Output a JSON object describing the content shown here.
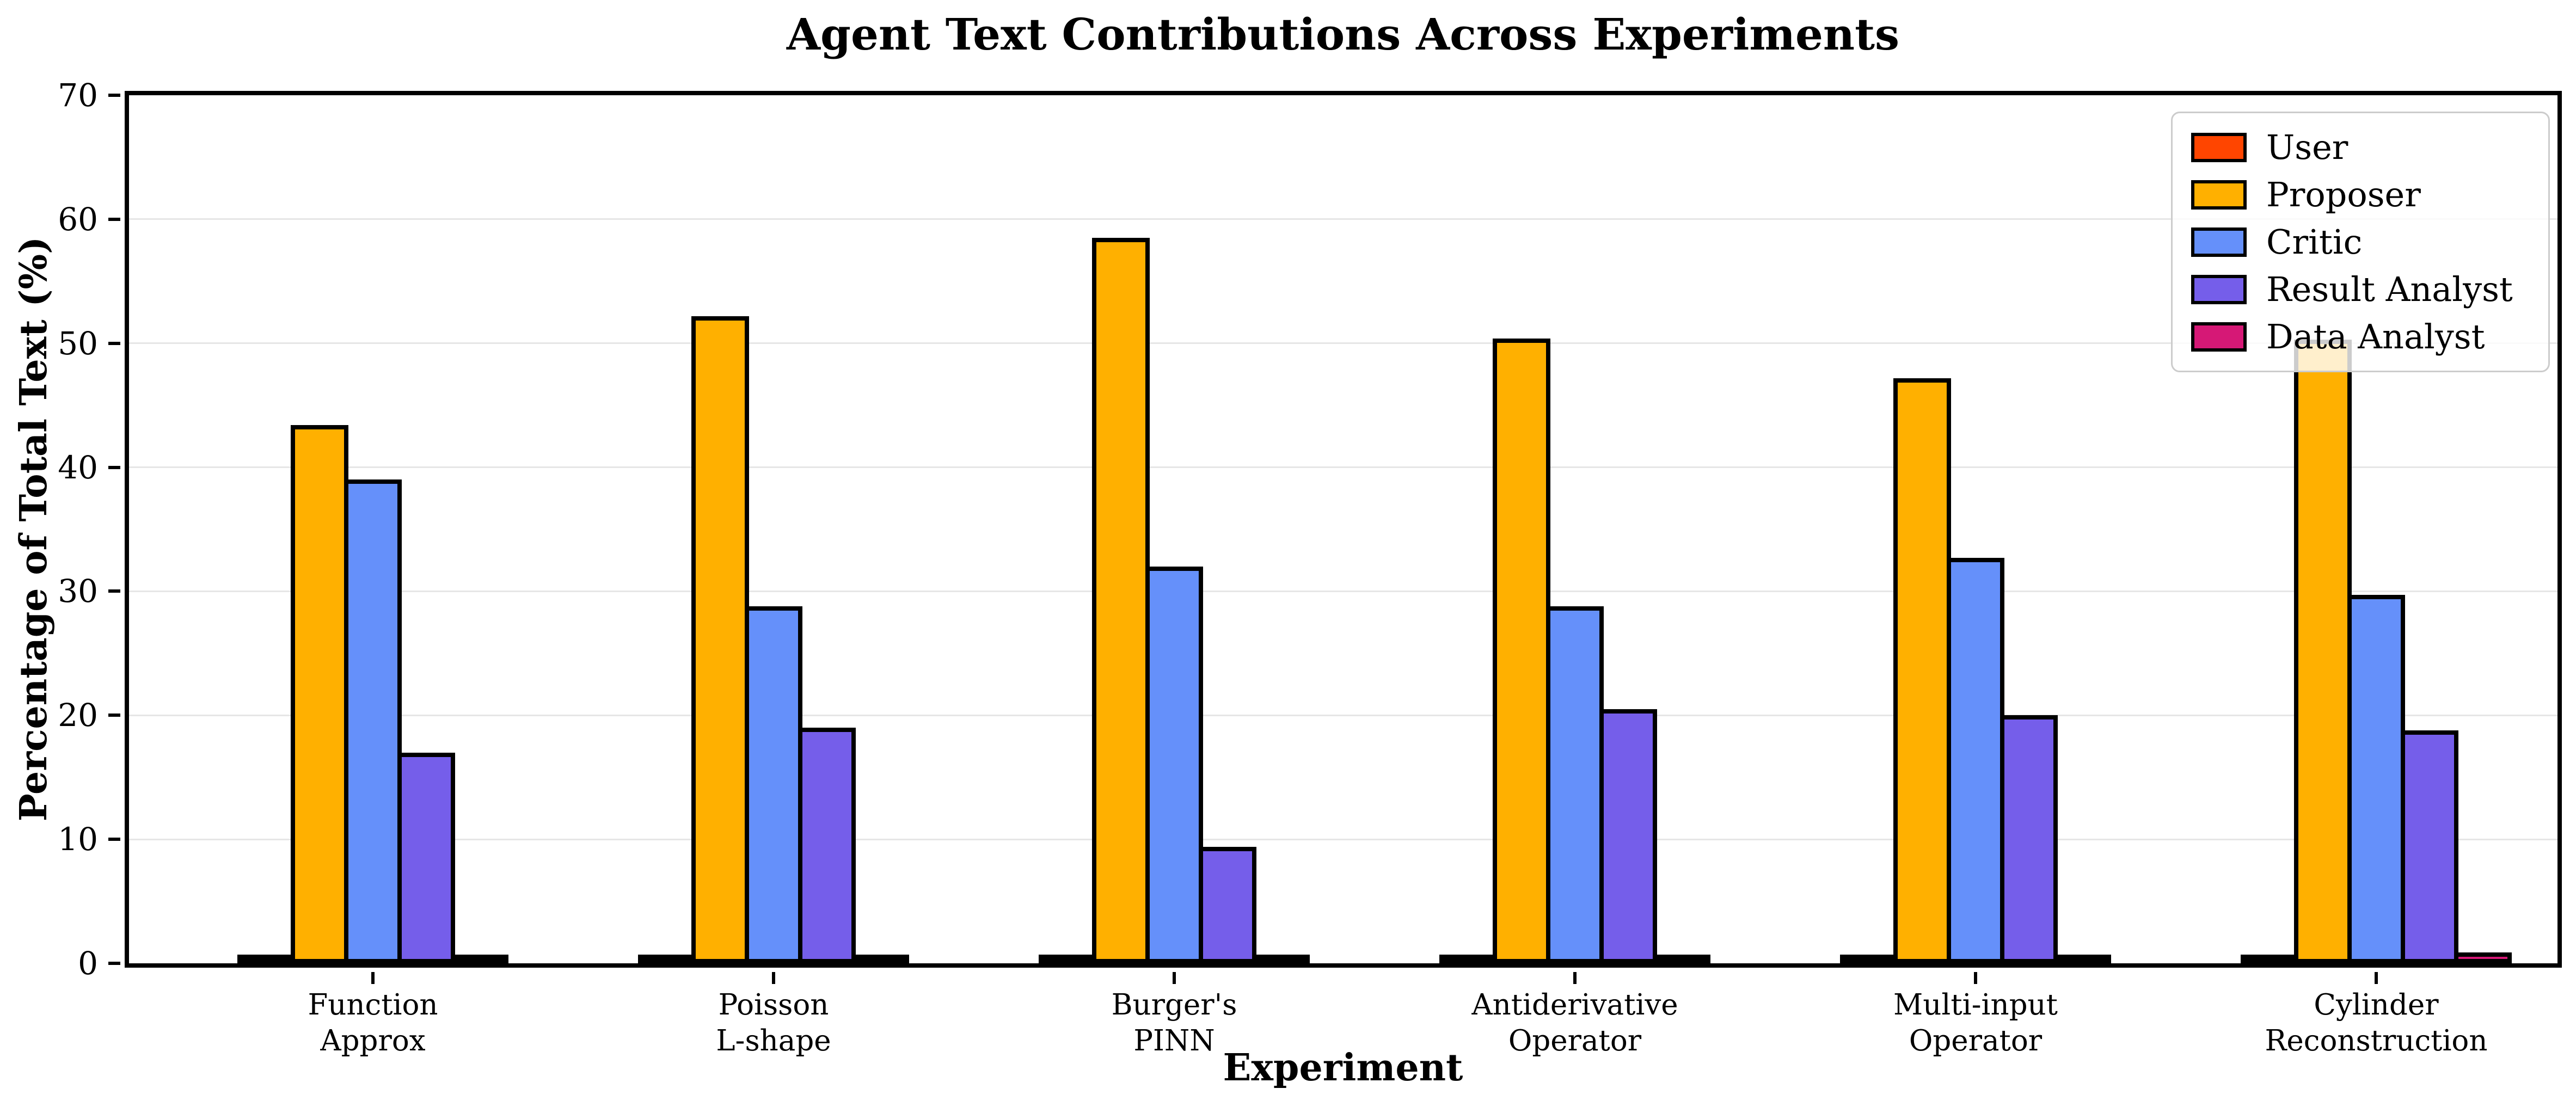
{
  "chart_data": {
    "type": "bar",
    "title": "Agent Text Contributions Across Experiments",
    "xlabel": "Experiment",
    "ylabel": "Percentage of Total Text (%)",
    "ylim": [
      0,
      70
    ],
    "yticks": [
      0,
      10,
      20,
      30,
      40,
      50,
      60,
      70
    ],
    "grid": "horizontal",
    "legend_position": "upper right",
    "categories": [
      [
        "Function",
        "Approx"
      ],
      [
        "Poisson",
        "L-shape"
      ],
      [
        "Burger's",
        "PINN"
      ],
      [
        "Antiderivative",
        "Operator"
      ],
      [
        "Multi-input",
        "Operator"
      ],
      [
        "Cylinder",
        "Reconstruction"
      ]
    ],
    "series": [
      {
        "name": "User",
        "color": "#FF4500",
        "values": [
          0.1,
          0.2,
          0.15,
          0.3,
          0.25,
          0.4
        ]
      },
      {
        "name": "Proposer",
        "color": "#FFB000",
        "values": [
          43.4,
          52.2,
          58.5,
          50.4,
          47.2,
          50.3
        ]
      },
      {
        "name": "Critic",
        "color": "#6590FA",
        "values": [
          39.0,
          28.8,
          32.0,
          28.8,
          32.7,
          29.7
        ]
      },
      {
        "name": "Result Analyst",
        "color": "#755EEA",
        "values": [
          17.0,
          19.0,
          9.4,
          20.5,
          20.0,
          18.8
        ]
      },
      {
        "name": "Data Analyst",
        "color": "#D61876",
        "values": [
          0.65,
          0.05,
          0.05,
          0.05,
          0.05,
          0.9
        ]
      }
    ]
  },
  "colors": {
    "background": "#ffffff",
    "bar_edge": "#000000",
    "grid": "#e6e6e6",
    "legend_border": "#cccccc"
  }
}
